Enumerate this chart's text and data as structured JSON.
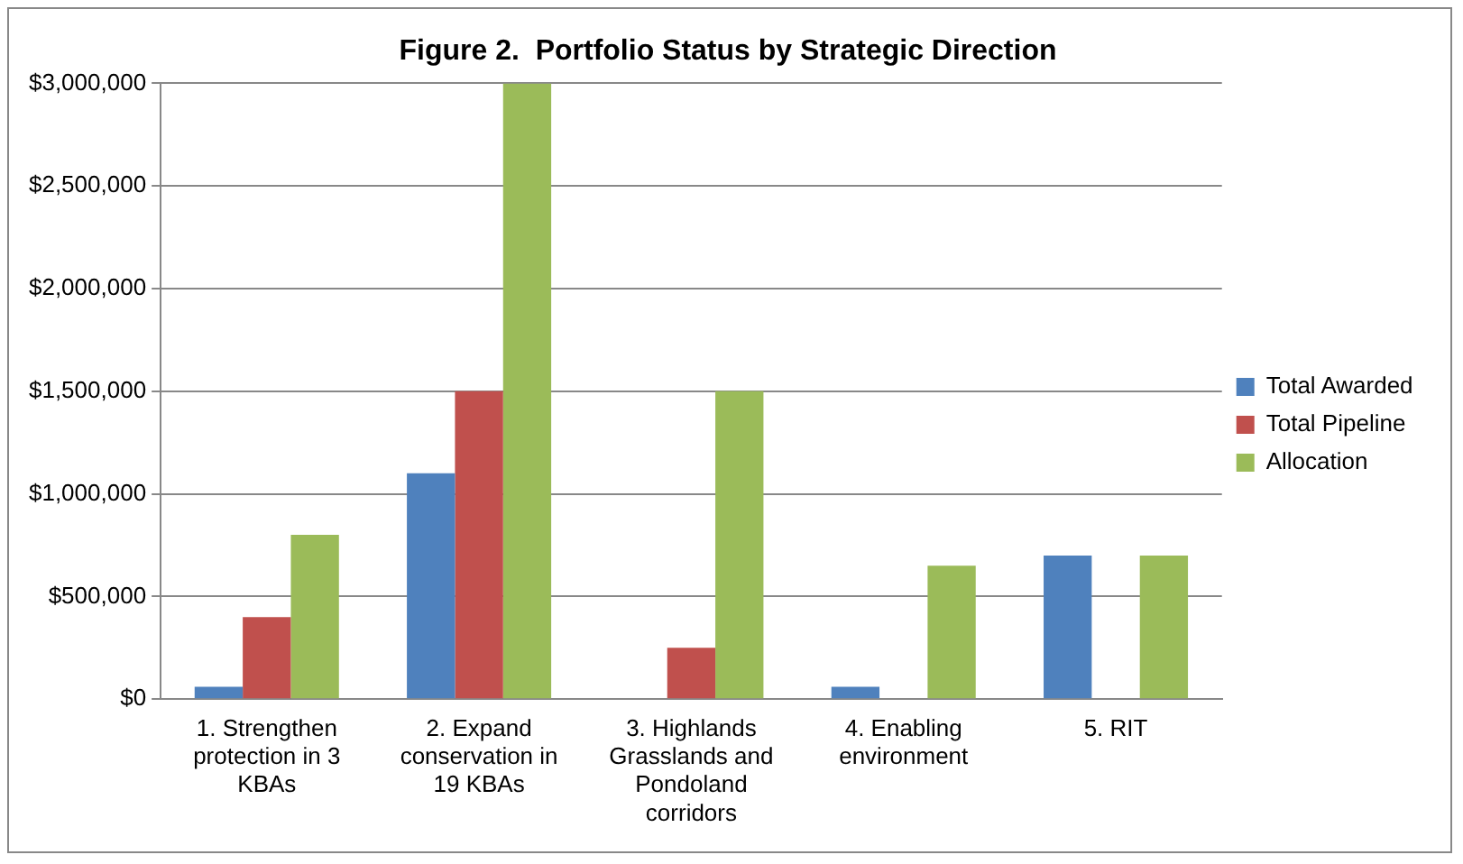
{
  "chart_data": {
    "type": "bar",
    "title": "Figure 2.  Portfolio Status by Strategic Direction",
    "categories": [
      "1. Strengthen protection in 3 KBAs",
      "2. Expand conservation in 19 KBAs",
      "3. Highlands Grasslands and Pondoland corridors",
      "4. Enabling environment",
      "5. RIT"
    ],
    "series": [
      {
        "name": "Total Awarded",
        "color": "#4f81bd",
        "values": [
          60000,
          1100000,
          0,
          60000,
          700000
        ]
      },
      {
        "name": "Total Pipeline",
        "color": "#c0504d",
        "values": [
          400000,
          1500000,
          250000,
          0,
          0
        ]
      },
      {
        "name": "Allocation",
        "color": "#9bbb59",
        "values": [
          800000,
          3000000,
          1500000,
          650000,
          700000
        ]
      }
    ],
    "ylim": [
      0,
      3000000
    ],
    "yticks": [
      {
        "value": 0,
        "label": "$0"
      },
      {
        "value": 500000,
        "label": "$500,000"
      },
      {
        "value": 1000000,
        "label": "$1,000,000"
      },
      {
        "value": 1500000,
        "label": "$1,500,000"
      },
      {
        "value": 2000000,
        "label": "$2,000,000"
      },
      {
        "value": 2500000,
        "label": "$2,500,000"
      },
      {
        "value": 3000000,
        "label": "$3,000,000"
      }
    ],
    "grid": "y",
    "legend": "right"
  }
}
